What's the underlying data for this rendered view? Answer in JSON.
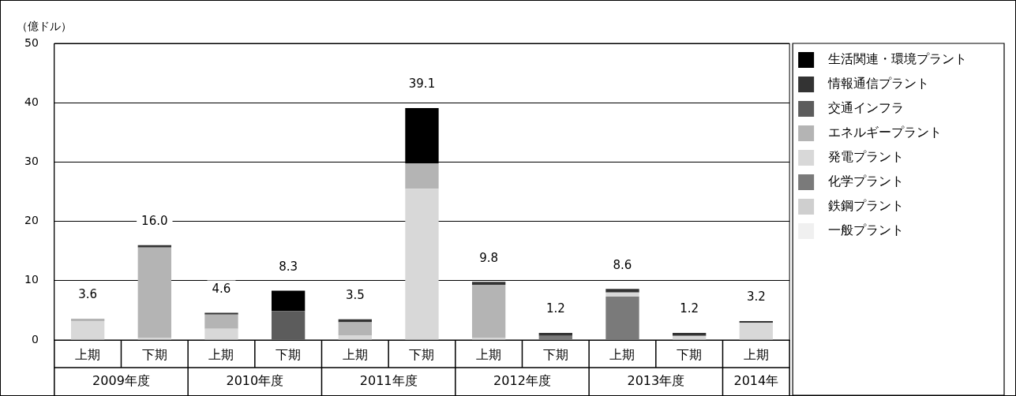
{
  "chart_data": {
    "type": "bar",
    "stacked": true,
    "ylabel": "（億ドル）",
    "categories": [
      "上期",
      "下期",
      "上期",
      "下期",
      "上期",
      "下期",
      "上期",
      "下期",
      "上期",
      "下期",
      "上期"
    ],
    "series": [
      {
        "name": "一般プラント",
        "color": "#f0f0f0",
        "values": [
          0,
          0,
          0,
          0,
          0,
          0,
          0,
          0,
          0,
          0,
          0
        ]
      },
      {
        "name": "鉄鋼プラント",
        "color": "#cfcfcf",
        "values": [
          0,
          0,
          0,
          0,
          0,
          0,
          0,
          0,
          0,
          0,
          0
        ]
      },
      {
        "name": "化学プラント",
        "color": "#7a7a7a",
        "values": [
          0,
          0,
          0,
          0,
          0,
          0,
          0,
          0.7,
          7.3,
          0,
          0
        ]
      },
      {
        "name": "発電プラント",
        "color": "#d8d8d8",
        "values": [
          3.2,
          0.4,
          1.9,
          0,
          0.8,
          25.5,
          0.4,
          0,
          0.7,
          0.7,
          2.9
        ]
      },
      {
        "name": "エネルギープラント",
        "color": "#b4b4b4",
        "values": [
          0.4,
          15.2,
          2.4,
          0,
          2.2,
          4.3,
          8.9,
          0,
          0,
          0,
          0
        ]
      },
      {
        "name": "交通インフラ",
        "color": "#5c5c5c",
        "values": [
          0,
          0,
          0,
          4.9,
          0,
          0,
          0,
          0,
          0,
          0,
          0
        ]
      },
      {
        "name": "情報通信プラント",
        "color": "#333333",
        "values": [
          0,
          0.4,
          0.3,
          0,
          0.5,
          0,
          0.5,
          0.5,
          0.6,
          0.5,
          0.3
        ]
      },
      {
        "name": "生活関連・環境プラント",
        "color": "#000000",
        "values": [
          0,
          0,
          0,
          3.4,
          0,
          9.3,
          0,
          0,
          0,
          0,
          0
        ]
      }
    ],
    "totals": [
      "3.6",
      "16.0",
      "4.6",
      "8.3",
      "3.5",
      "39.1",
      "9.8",
      "1.2",
      "8.6",
      "1.2",
      "3.2"
    ],
    "annotations": [
      "2009年度",
      "2010年度",
      "2011年度",
      "2012年度",
      "2013年度",
      "2014年"
    ],
    "ylim": [
      0,
      50
    ],
    "yticks": [
      0,
      10,
      20,
      30,
      40,
      50
    ],
    "grid": "y",
    "legend": "right"
  }
}
